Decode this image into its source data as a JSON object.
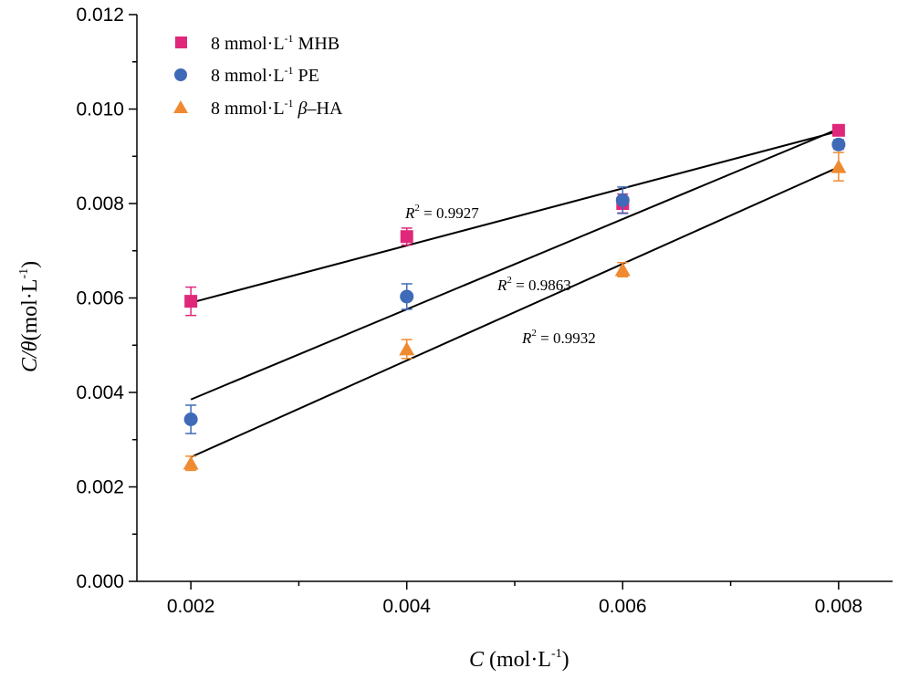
{
  "chart_data": {
    "type": "scatter",
    "xlabel": {
      "var": "C",
      "unit": "(mol·L",
      "exp": "-1",
      "close": ")"
    },
    "ylabel": {
      "var": "C/θ",
      "unit": "(mol·L",
      "exp": "-1",
      "close": ")"
    },
    "xlim": [
      0.0015,
      0.0085
    ],
    "ylim": [
      0.0,
      0.012
    ],
    "xticks": [
      "0.002",
      "0.004",
      "0.006",
      "0.008"
    ],
    "yticks": [
      "0.000",
      "0.002",
      "0.004",
      "0.006",
      "0.008",
      "0.010",
      "0.012"
    ],
    "x": [
      0.002,
      0.004,
      0.006,
      0.008
    ],
    "series": [
      {
        "name": "8 mmol·L-1 MHB",
        "legend_prefix": "8 mmol·L",
        "legend_exp": "-1",
        "legend_suffix": " MHB",
        "marker": "square",
        "color": "#e0287a",
        "values": [
          0.00593,
          0.0073,
          0.008,
          0.00955
        ],
        "errors": [
          0.0003,
          0.00018,
          0.0002,
          0.0001
        ],
        "fit": {
          "y_start": 0.0059,
          "y_end": 0.00953
        },
        "r2_label": "R",
        "r2_exp": "2",
        "r2_value": " = 0.9927"
      },
      {
        "name": "8 mmol·L-1 PE",
        "legend_prefix": "8 mmol·L",
        "legend_exp": "-1",
        "legend_suffix": " PE",
        "marker": "circle",
        "color": "#3f6ab8",
        "values": [
          0.00343,
          0.00603,
          0.00807,
          0.00925
        ],
        "errors": [
          0.0003,
          0.00027,
          0.00028,
          0.0001
        ],
        "fit": {
          "y_start": 0.00385,
          "y_end": 0.00958
        },
        "r2_label": "R",
        "r2_exp": "2",
        "r2_value": " = 0.9863"
      },
      {
        "name": "8 mmol·L-1 β–HA",
        "legend_prefix": "8 mmol·L",
        "legend_exp": "-1",
        "legend_suffix_pre": " ",
        "legend_greek": "β",
        "legend_suffix": "–HA",
        "marker": "triangle",
        "color": "#f08a30",
        "values": [
          0.0025,
          0.00492,
          0.0066,
          0.00878
        ],
        "errors": [
          0.00015,
          0.0002,
          0.00015,
          0.0003
        ],
        "fit": {
          "y_start": 0.00263,
          "y_end": 0.00877
        },
        "r2_label": "R",
        "r2_exp": "2",
        "r2_value": " = 0.9932"
      }
    ],
    "legend_position": "top-left"
  }
}
